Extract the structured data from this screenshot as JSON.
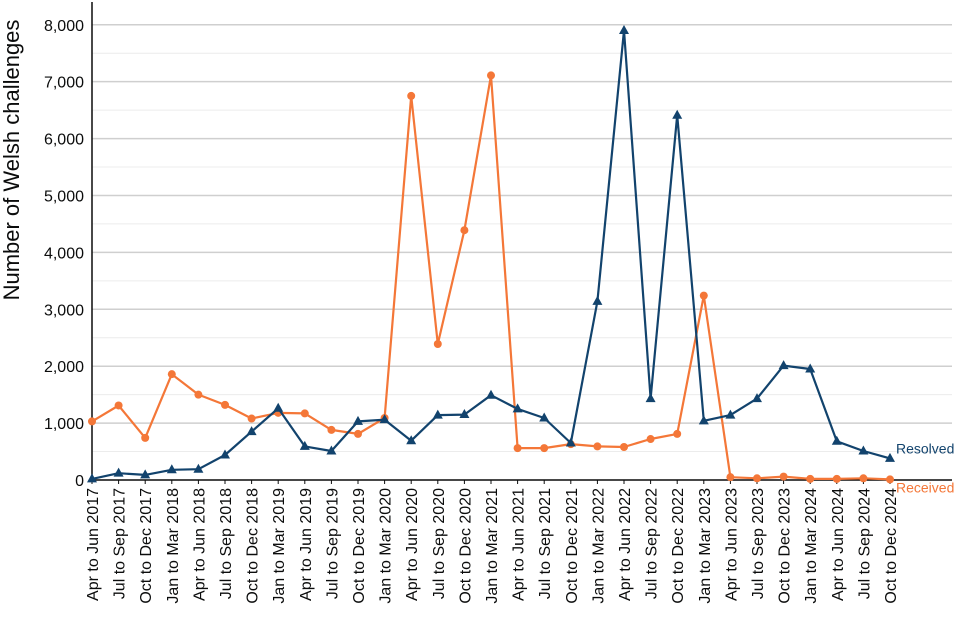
{
  "chart_data": {
    "type": "line",
    "title": "",
    "xlabel": "",
    "ylabel": "Number of Welsh challenges",
    "ylim": [
      0,
      8400
    ],
    "yticks": [
      0,
      1000,
      2000,
      3000,
      4000,
      5000,
      6000,
      7000,
      8000
    ],
    "ytick_labels": [
      "0",
      "1,000",
      "2,000",
      "3,000",
      "4,000",
      "5,000",
      "6,000",
      "7,000",
      "8,000"
    ],
    "grid": true,
    "categories": [
      "Apr to Jun 2017",
      "Jul to Sep 2017",
      "Oct to Dec 2017",
      "Jan to Mar 2018",
      "Apr to Jun 2018",
      "Jul to Sep 2018",
      "Oct to Dec 2018",
      "Jan to Mar 2019",
      "Apr to Jun 2019",
      "Jul to Sep 2019",
      "Oct to Dec 2019",
      "Jan to Mar 2020",
      "Apr to Jun 2020",
      "Jul to Sep 2020",
      "Oct to Dec 2020",
      "Jan to Mar 2021",
      "Apr to Jun 2021",
      "Jul to Sep 2021",
      "Oct to Dec 2021",
      "Jan to Mar 2022",
      "Apr to Jun 2022",
      "Jul to Sep 2022",
      "Oct to Dec 2022",
      "Jan to Mar 2023",
      "Apr to Jun 2023",
      "Jul to Sep 2023",
      "Oct to Dec 2023",
      "Jan to Mar 2024",
      "Apr to Jun 2024",
      "Jul to Sep 2024",
      "Oct to Dec 2024"
    ],
    "series": [
      {
        "name": "Received",
        "color": "#f47738",
        "marker": "circle",
        "values": [
          1030,
          1310,
          740,
          1860,
          1500,
          1320,
          1080,
          1180,
          1170,
          880,
          810,
          1090,
          6750,
          2390,
          4390,
          7110,
          560,
          560,
          630,
          590,
          580,
          720,
          810,
          3240,
          50,
          30,
          60,
          20,
          20,
          30,
          10
        ]
      },
      {
        "name": "Resolved",
        "color": "#12436d",
        "marker": "triangle",
        "values": [
          20,
          120,
          90,
          180,
          190,
          440,
          850,
          1260,
          590,
          510,
          1030,
          1060,
          690,
          1140,
          1150,
          1490,
          1250,
          1090,
          650,
          3140,
          7900,
          1430,
          6410,
          1040,
          1140,
          1430,
          2010,
          1950,
          680,
          510,
          380
        ]
      }
    ]
  }
}
